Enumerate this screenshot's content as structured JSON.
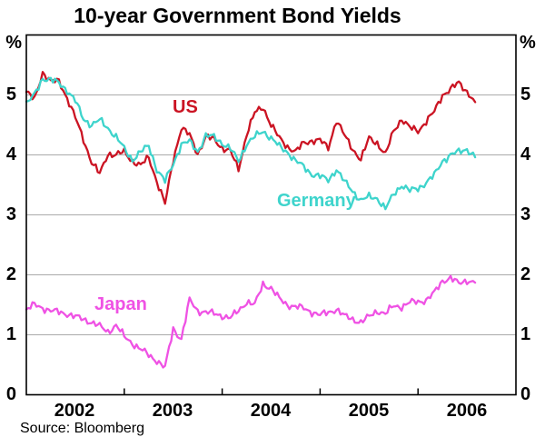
{
  "title": "10-year Government Bond Yields",
  "source": "Source: Bloomberg",
  "axis": {
    "unit_left": "%",
    "unit_right": "%",
    "y_labels": [
      "5",
      "4",
      "3",
      "2",
      "1",
      "0"
    ],
    "x_labels": [
      "2002",
      "2003",
      "2004",
      "2005",
      "2006"
    ]
  },
  "series_labels": {
    "us": "US",
    "germany": "Germany",
    "japan": "Japan"
  },
  "colors": {
    "us": "#cb1423",
    "germany": "#3ed4cc",
    "japan": "#ef52e4",
    "grid": "#aaaaaa",
    "axis": "#000000",
    "background": "#ffffff"
  },
  "chart_data": {
    "type": "line",
    "title": "10-year Government Bond Yields",
    "ylabel": "%",
    "ylim": [
      0,
      6
    ],
    "yticks": [
      0,
      1,
      2,
      3,
      4,
      5
    ],
    "xticks_years": [
      2003,
      2004,
      2005,
      2006
    ],
    "x_start": "2002-01",
    "x_end": "2006-08",
    "grid": "horizontal",
    "legend": "inline-labels",
    "x": [
      "2002-01",
      "2002-02",
      "2002-03",
      "2002-04",
      "2002-05",
      "2002-06",
      "2002-07",
      "2002-08",
      "2002-09",
      "2002-10",
      "2002-11",
      "2002-12",
      "2003-01",
      "2003-02",
      "2003-03",
      "2003-04",
      "2003-05",
      "2003-06",
      "2003-07",
      "2003-08",
      "2003-09",
      "2003-10",
      "2003-11",
      "2003-12",
      "2004-01",
      "2004-02",
      "2004-03",
      "2004-04",
      "2004-05",
      "2004-06",
      "2004-07",
      "2004-08",
      "2004-09",
      "2004-10",
      "2004-11",
      "2004-12",
      "2005-01",
      "2005-02",
      "2005-03",
      "2005-04",
      "2005-05",
      "2005-06",
      "2005-07",
      "2005-08",
      "2005-09",
      "2005-10",
      "2005-11",
      "2005-12",
      "2006-01",
      "2006-02",
      "2006-03",
      "2006-04",
      "2006-05",
      "2006-06",
      "2006-07",
      "2006-08"
    ],
    "series": [
      {
        "name": "US",
        "color": "#cb1423",
        "values": [
          5.05,
          4.92,
          5.38,
          5.22,
          5.23,
          4.95,
          4.62,
          4.26,
          3.88,
          3.68,
          4.02,
          4.0,
          4.05,
          3.9,
          3.82,
          3.96,
          3.56,
          3.18,
          3.92,
          4.45,
          4.33,
          4.02,
          4.3,
          4.26,
          4.12,
          4.06,
          3.76,
          4.35,
          4.7,
          4.8,
          4.5,
          4.28,
          4.14,
          4.05,
          4.2,
          4.24,
          4.24,
          4.12,
          4.58,
          4.32,
          4.1,
          3.92,
          4.28,
          4.2,
          4.0,
          4.4,
          4.6,
          4.45,
          4.4,
          4.56,
          4.72,
          5.0,
          5.1,
          5.2,
          5.06,
          4.88
        ]
      },
      {
        "name": "Germany",
        "color": "#3ed4cc",
        "values": [
          4.85,
          5.0,
          5.28,
          5.25,
          5.2,
          5.08,
          4.9,
          4.6,
          4.5,
          4.58,
          4.45,
          4.3,
          4.1,
          3.92,
          4.05,
          4.15,
          3.76,
          3.56,
          3.85,
          4.18,
          4.22,
          4.06,
          4.32,
          4.3,
          4.2,
          4.1,
          3.9,
          4.18,
          4.3,
          4.4,
          4.28,
          4.14,
          4.05,
          3.9,
          3.8,
          3.68,
          3.64,
          3.58,
          3.76,
          3.55,
          3.4,
          3.24,
          3.3,
          3.28,
          3.1,
          3.34,
          3.5,
          3.4,
          3.44,
          3.54,
          3.66,
          3.9,
          4.0,
          4.05,
          4.1,
          3.96
        ]
      },
      {
        "name": "Japan",
        "color": "#ef52e4",
        "values": [
          1.42,
          1.5,
          1.45,
          1.4,
          1.38,
          1.35,
          1.3,
          1.26,
          1.21,
          1.14,
          1.05,
          1.16,
          0.97,
          0.86,
          0.76,
          0.66,
          0.57,
          0.45,
          1.1,
          0.93,
          1.58,
          1.4,
          1.38,
          1.35,
          1.32,
          1.28,
          1.4,
          1.55,
          1.5,
          1.85,
          1.78,
          1.6,
          1.5,
          1.47,
          1.44,
          1.38,
          1.33,
          1.37,
          1.43,
          1.31,
          1.26,
          1.21,
          1.3,
          1.4,
          1.35,
          1.48,
          1.47,
          1.54,
          1.55,
          1.58,
          1.7,
          1.9,
          1.95,
          1.85,
          1.91,
          1.87
        ]
      }
    ]
  }
}
